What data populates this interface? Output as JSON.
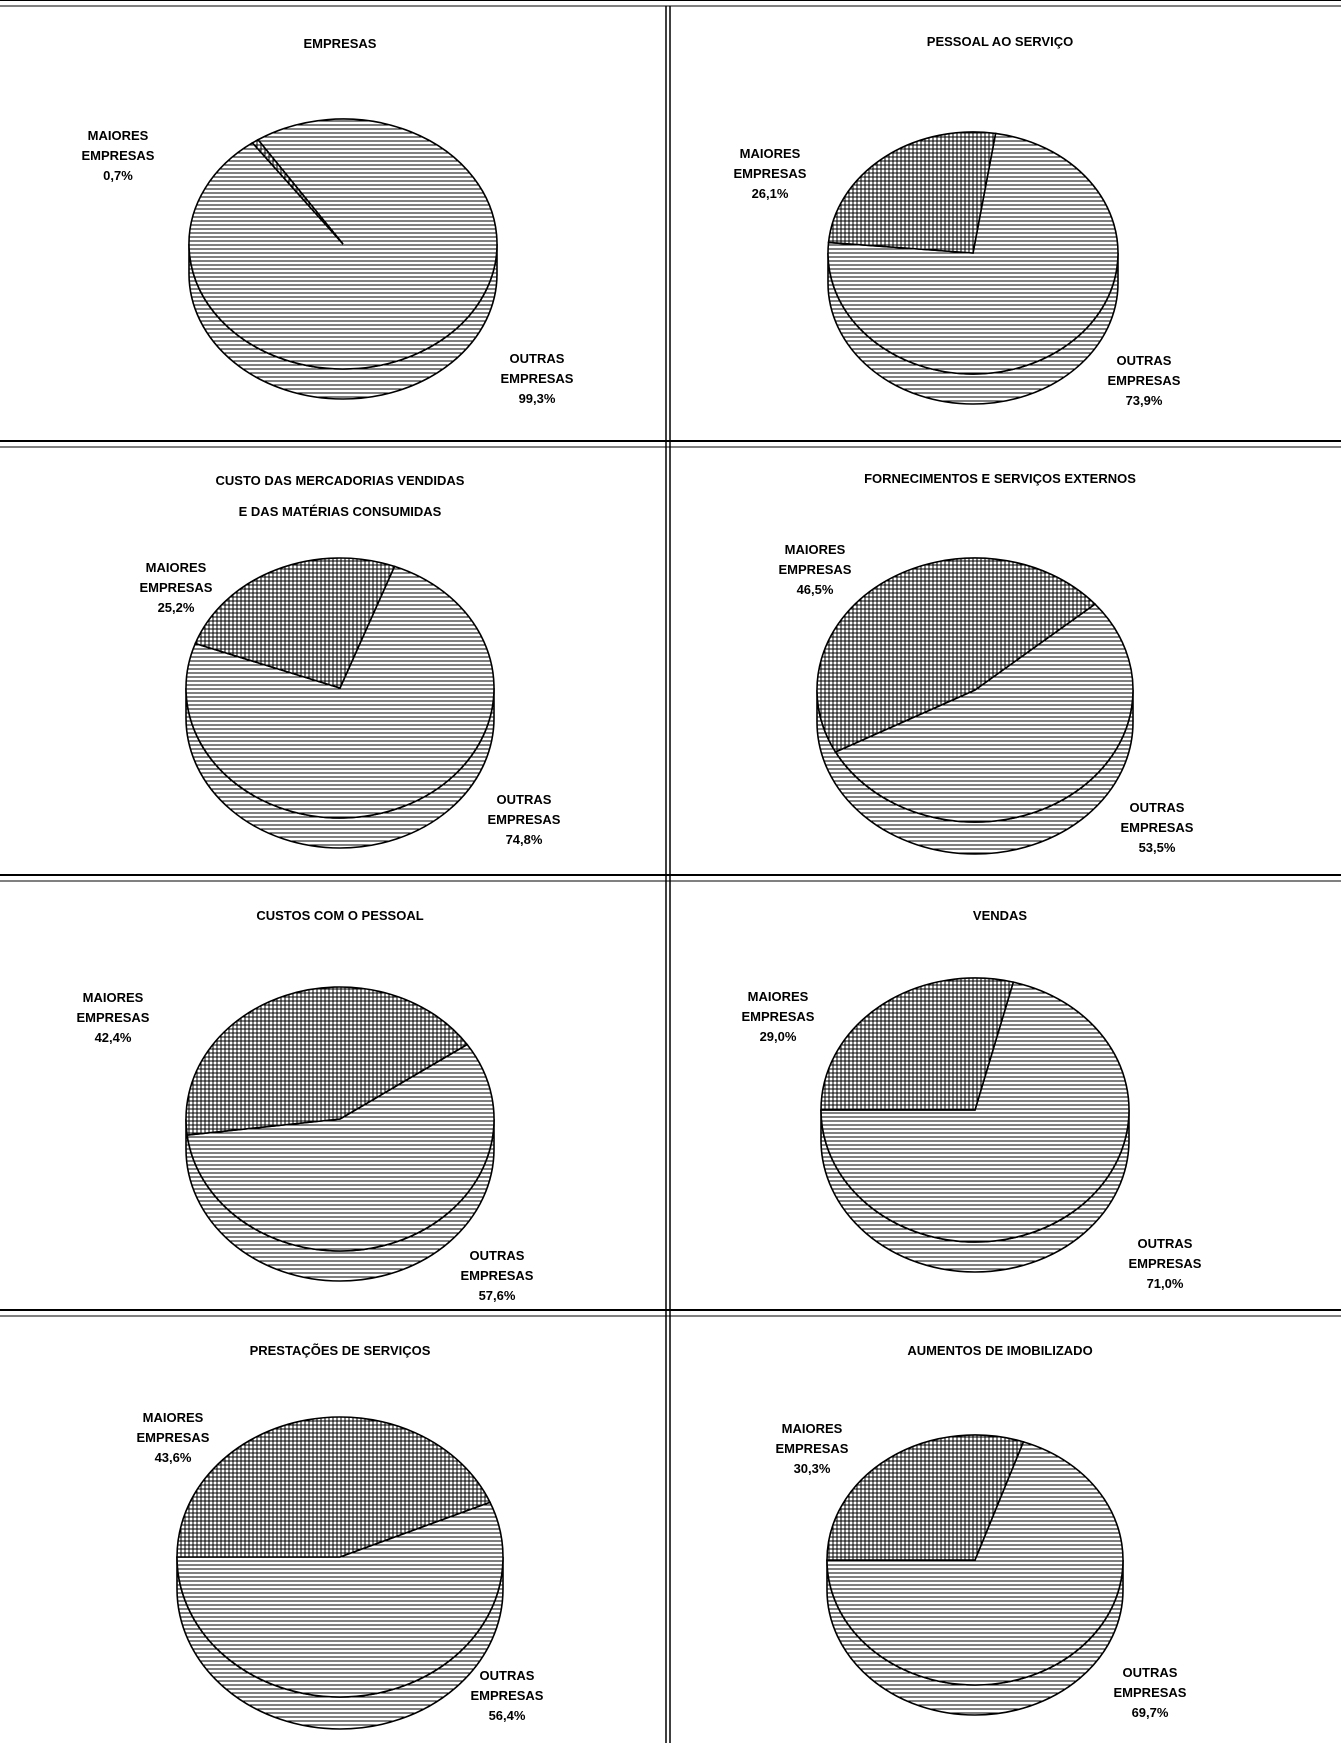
{
  "colors": {
    "ink": "#000000",
    "background": "#ffffff",
    "hatch_outras": "horizontal-lines",
    "hatch_maiores": "crosshatch"
  },
  "chart_data": [
    {
      "type": "pie",
      "title": [
        "EMPRESAS"
      ],
      "slices": [
        {
          "label": [
            "MAIORES",
            "EMPRESAS"
          ],
          "pct_text": "0,7%",
          "value": 0.7
        },
        {
          "label": [
            "OUTRAS",
            "EMPRESAS"
          ],
          "pct_text": "99,3%",
          "value": 99.3
        }
      ]
    },
    {
      "type": "pie",
      "title": [
        "PESSOAL AO SERVIÇO"
      ],
      "slices": [
        {
          "label": [
            "MAIORES",
            "EMPRESAS"
          ],
          "pct_text": "26,1%",
          "value": 26.1
        },
        {
          "label": [
            "OUTRAS",
            "EMPRESAS"
          ],
          "pct_text": "73,9%",
          "value": 73.9
        }
      ]
    },
    {
      "type": "pie",
      "title": [
        "CUSTO DAS MERCADORIAS VENDIDAS",
        "E DAS MATÉRIAS CONSUMIDAS"
      ],
      "slices": [
        {
          "label": [
            "MAIORES",
            "EMPRESAS"
          ],
          "pct_text": "25,2%",
          "value": 25.2
        },
        {
          "label": [
            "OUTRAS",
            "EMPRESAS"
          ],
          "pct_text": "74,8%",
          "value": 74.8
        }
      ]
    },
    {
      "type": "pie",
      "title": [
        "FORNECIMENTOS E SERVIÇOS EXTERNOS"
      ],
      "slices": [
        {
          "label": [
            "MAIORES",
            "EMPRESAS"
          ],
          "pct_text": "46,5%",
          "value": 46.5
        },
        {
          "label": [
            "OUTRAS",
            "EMPRESAS"
          ],
          "pct_text": "53,5%",
          "value": 53.5
        }
      ]
    },
    {
      "type": "pie",
      "title": [
        "CUSTOS COM O PESSOAL"
      ],
      "slices": [
        {
          "label": [
            "MAIORES",
            "EMPRESAS"
          ],
          "pct_text": "42,4%",
          "value": 42.4
        },
        {
          "label": [
            "OUTRAS",
            "EMPRESAS"
          ],
          "pct_text": "57,6%",
          "value": 57.6
        }
      ]
    },
    {
      "type": "pie",
      "title": [
        "VENDAS"
      ],
      "slices": [
        {
          "label": [
            "MAIORES",
            "EMPRESAS"
          ],
          "pct_text": "29,0%",
          "value": 29.0
        },
        {
          "label": [
            "OUTRAS",
            "EMPRESAS"
          ],
          "pct_text": "71,0%",
          "value": 71.0
        }
      ]
    },
    {
      "type": "pie",
      "title": [
        "PRESTAÇÕES DE SERVIÇOS"
      ],
      "slices": [
        {
          "label": [
            "MAIORES",
            "EMPRESAS"
          ],
          "pct_text": "43,6%",
          "value": 43.6
        },
        {
          "label": [
            "OUTRAS",
            "EMPRESAS"
          ],
          "pct_text": "56,4%",
          "value": 56.4
        }
      ]
    },
    {
      "type": "pie",
      "title": [
        "AUMENTOS DE IMOBILIZADO"
      ],
      "slices": [
        {
          "label": [
            "MAIORES",
            "EMPRESAS"
          ],
          "pct_text": "30,3%",
          "value": 30.3
        },
        {
          "label": [
            "OUTRAS",
            "EMPRESAS"
          ],
          "pct_text": "69,7%",
          "value": 69.7
        }
      ]
    }
  ]
}
